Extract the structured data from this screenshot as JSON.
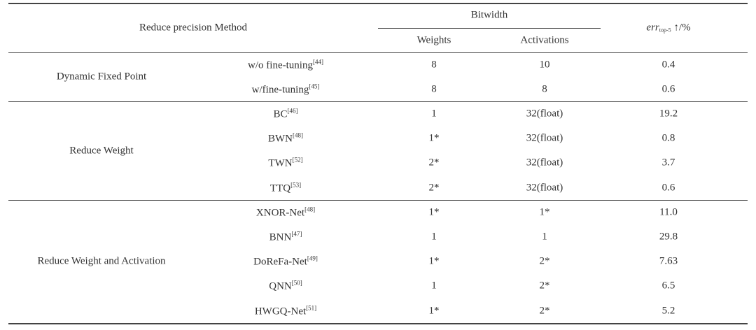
{
  "header": {
    "method": "Reduce precision Method",
    "bitwidth": "Bitwidth",
    "weights": "Weights",
    "activations": "Activations",
    "err": {
      "main": "err",
      "sub": "top-5",
      "suffix": "↑/%"
    }
  },
  "groups": [
    {
      "name": "Dynamic Fixed Point",
      "rows": [
        {
          "method": "w/o fine-tuning",
          "ref": "[44]",
          "weights": "8",
          "activations": "10",
          "err": "0.4"
        },
        {
          "method": "w/fine-tuning",
          "ref": "[45]",
          "weights": "8",
          "activations": "8",
          "err": "0.6"
        }
      ]
    },
    {
      "name": "Reduce Weight",
      "rows": [
        {
          "method": "BC",
          "ref": "[46]",
          "weights": "1",
          "activations": "32(float)",
          "err": "19.2"
        },
        {
          "method": "BWN",
          "ref": "[48]",
          "weights": "1*",
          "activations": "32(float)",
          "err": "0.8"
        },
        {
          "method": "TWN",
          "ref": "[52]",
          "weights": "2*",
          "activations": "32(float)",
          "err": "3.7"
        },
        {
          "method": "TTQ",
          "ref": "[53]",
          "weights": "2*",
          "activations": "32(float)",
          "err": "0.6"
        }
      ]
    },
    {
      "name": "Reduce Weight and Activation",
      "rows": [
        {
          "method": "XNOR-Net",
          "ref": "[48]",
          "weights": "1*",
          "activations": "1*",
          "err": "11.0"
        },
        {
          "method": "BNN",
          "ref": "[47]",
          "weights": "1",
          "activations": "1",
          "err": "29.8"
        },
        {
          "method": "DoReFa-Net",
          "ref": "[49]",
          "weights": "1*",
          "activations": "2*",
          "err": "7.63"
        },
        {
          "method": "QNN",
          "ref": "[50]",
          "weights": "1",
          "activations": "2*",
          "err": "6.5"
        },
        {
          "method": "HWGQ-Net",
          "ref": "[51]",
          "weights": "1*",
          "activations": "2*",
          "err": "5.2"
        }
      ]
    }
  ]
}
